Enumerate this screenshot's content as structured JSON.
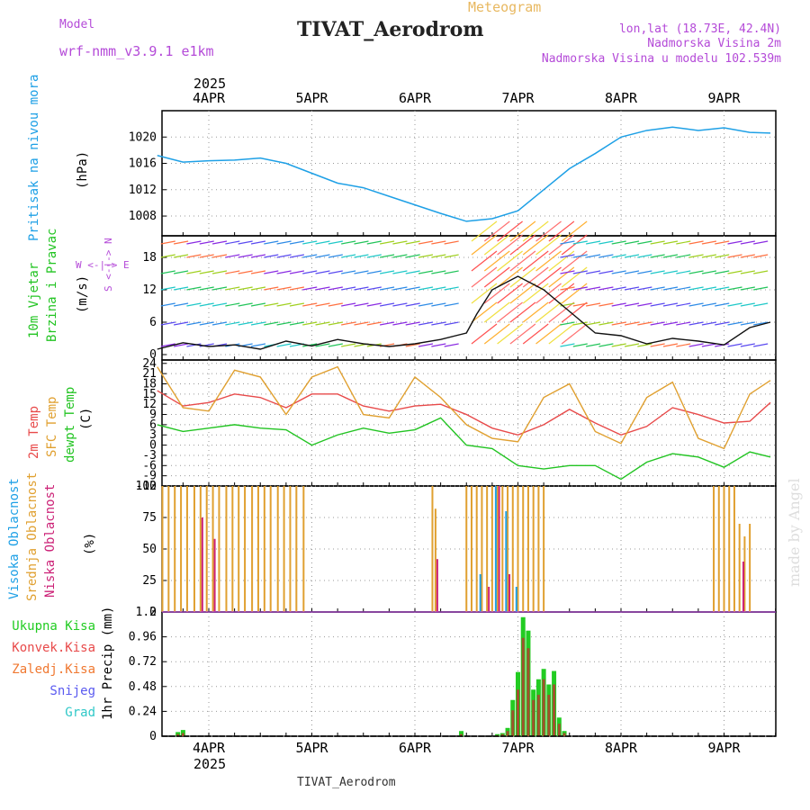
{
  "header": {
    "model_label": "Model",
    "model_name": "wrf-nmm_v3.9.1 e1km",
    "program": "Meteogram",
    "station": "TIVAT_Aerodrom",
    "lonlat": "lon,lat (18.73E, 42.4N)",
    "elevation": "Nadmorska Visina 2m",
    "model_elevation": "Nadmorska Visina u modelu 102.539m",
    "credit": "made by Angel",
    "footer_station": "TIVAT_Aerodrom"
  },
  "colors": {
    "pressure": "#1ea0e6",
    "temp2m": "#e84a4a",
    "sfc": "#e0a030",
    "dewpt": "#22c422",
    "high_cloud": "#1ea0e6",
    "mid_cloud": "#e0a030",
    "low_cloud": "#cc2277",
    "total_rain": "#22cc22",
    "conv_rain": "#e84a4a",
    "freezing": "#f07830",
    "snow": "#5a5af0",
    "grad": "#30c8c8",
    "model_purple": "#b44ad8"
  },
  "chart_data": [
    {
      "type": "line",
      "title": "",
      "ylabel": [
        "Pritisak na nivou mora",
        "(hPa)"
      ],
      "x_ticks_top": [
        "4APR",
        "5APR",
        "6APR",
        "7APR",
        "8APR",
        "9APR"
      ],
      "year_top": "2025",
      "ylim": [
        1005,
        1024
      ],
      "yticks": [
        "1008",
        "1012",
        "1016",
        "1020"
      ],
      "x": [
        0,
        0.25,
        0.5,
        0.75,
        1.0,
        1.25,
        1.5,
        1.75,
        2.0,
        2.25,
        2.5,
        2.75,
        3.0,
        3.25,
        3.5,
        3.75,
        4.0,
        4.25,
        4.5,
        4.75,
        5.0,
        5.25,
        5.5,
        5.75,
        5.95
      ],
      "series": [
        {
          "values": [
            1017.2,
            1016.2,
            1016.4,
            1016.5,
            1016.8,
            1016.0,
            1014.5,
            1013.0,
            1012.3,
            1011.0,
            1009.7,
            1008.4,
            1007.2,
            1007.6,
            1008.8,
            1012.0,
            1015.2,
            1017.5,
            1020.0,
            1021.0,
            1021.5,
            1021.0,
            1021.4,
            1020.7,
            1020.6
          ]
        }
      ]
    },
    {
      "type": "line",
      "title": "",
      "ylabel": [
        "10m Vjetar",
        "Brzina i Pravac",
        "(m/s)"
      ],
      "compass": "W <-|-> E",
      "compass_vertical": "S <-|-> N",
      "ylim": [
        -1,
        22
      ],
      "yticks": [
        "0",
        "6",
        "12",
        "18"
      ],
      "x": [
        0,
        0.25,
        0.5,
        0.75,
        1.0,
        1.25,
        1.5,
        1.75,
        2.0,
        2.25,
        2.5,
        2.75,
        3.0,
        3.1,
        3.25,
        3.4,
        3.5,
        3.75,
        4.0,
        4.25,
        4.5,
        4.75,
        5.0,
        5.25,
        5.5,
        5.75,
        5.95
      ],
      "series": [
        {
          "values": [
            1.0,
            2.2,
            1.5,
            1.8,
            1.0,
            2.5,
            1.6,
            2.8,
            2.0,
            1.5,
            2.0,
            2.8,
            4.0,
            7.5,
            12.0,
            13.5,
            14.5,
            12.0,
            8.0,
            4.0,
            3.5,
            2.0,
            3.0,
            2.5,
            1.8,
            5.0,
            6.0
          ]
        }
      ]
    },
    {
      "type": "line",
      "title": "",
      "ylabel": [
        "2m Temp",
        "SFC Temp",
        "dewpt Temp",
        "(C)"
      ],
      "ylim": [
        -12,
        25
      ],
      "yticks": [
        "-12",
        "-9",
        "-6",
        "-3",
        "0",
        "3",
        "6",
        "9",
        "12",
        "15",
        "18",
        "21",
        "24"
      ],
      "x": [
        0,
        0.25,
        0.5,
        0.75,
        1.0,
        1.25,
        1.5,
        1.75,
        2.0,
        2.25,
        2.5,
        2.75,
        3.0,
        3.25,
        3.5,
        3.75,
        4.0,
        4.25,
        4.5,
        4.75,
        5.0,
        5.25,
        5.5,
        5.75,
        5.95
      ],
      "series": [
        {
          "name": "2m Temp",
          "values": [
            16.0,
            11.5,
            12.5,
            15.0,
            14.0,
            11.0,
            15.0,
            15.0,
            11.5,
            10.0,
            11.5,
            12.0,
            9.0,
            5.0,
            3.0,
            6.0,
            10.5,
            6.5,
            3.0,
            5.5,
            11.0,
            9.0,
            6.5,
            7.0,
            12.5
          ]
        },
        {
          "name": "SFC Temp",
          "values": [
            23.0,
            11.0,
            10.0,
            22.0,
            20.0,
            9.0,
            20.0,
            23.0,
            9.0,
            8.0,
            20.0,
            14.0,
            6.0,
            2.0,
            1.0,
            14.0,
            18.0,
            4.0,
            0.5,
            14.0,
            18.5,
            2.0,
            -1.0,
            15.0,
            19.0
          ]
        },
        {
          "name": "dewpt Temp",
          "values": [
            6.0,
            4.0,
            5.0,
            6.0,
            5.0,
            4.5,
            0.0,
            3.0,
            5.0,
            3.5,
            4.5,
            8.0,
            0.0,
            -1.0,
            -6.0,
            -7.0,
            -6.0,
            -6.0,
            -10.0,
            -5.0,
            -2.5,
            -3.5,
            -6.5,
            -2.0,
            -3.5
          ]
        }
      ]
    },
    {
      "type": "bar",
      "title": "",
      "ylabel": [
        "Visoka Oblacnost",
        "Srednja Oblacnost",
        "Niska Oblacnost",
        "(%)"
      ],
      "ylim": [
        0,
        100
      ],
      "yticks": [
        "0",
        "25",
        "50",
        "75",
        "100"
      ],
      "series": [
        {
          "name": "Srednja Oblacnost",
          "x": [
            0.05,
            0.11,
            0.17,
            0.23,
            0.29,
            0.36,
            0.42,
            0.48,
            0.54,
            0.6,
            0.67,
            0.73,
            0.79,
            0.85,
            0.92,
            0.98,
            1.04,
            1.1,
            1.17,
            1.23,
            1.29,
            1.35,
            1.42,
            2.67,
            2.7,
            3.0,
            3.05,
            3.1,
            3.15,
            3.2,
            3.25,
            3.3,
            3.35,
            3.4,
            3.45,
            3.5,
            3.55,
            3.6,
            3.65,
            3.7,
            3.75,
            3.8,
            3.85,
            3.9,
            3.95,
            4.0,
            4.05,
            4.1,
            4.15,
            4.2,
            4.25,
            4.3,
            4.35,
            4.4,
            4.45,
            4.5,
            4.55,
            4.6,
            4.65,
            4.7,
            4.75,
            4.8,
            4.85,
            4.9,
            4.95,
            5.0,
            5.05,
            5.1,
            5.15,
            5.2,
            5.25,
            5.3,
            5.35,
            5.4,
            5.45,
            5.5,
            5.55,
            5.6,
            5.65,
            5.7,
            5.75,
            5.8,
            5.85,
            5.9
          ],
          "values": [
            100,
            100,
            100,
            100,
            100,
            100,
            100,
            100,
            100,
            100,
            100,
            100,
            100,
            100,
            100,
            100,
            100,
            100,
            100,
            100,
            100,
            100,
            100,
            100,
            82,
            100,
            100,
            100,
            100,
            100,
            100,
            100,
            100,
            100,
            100,
            100,
            100,
            100,
            100,
            100,
            100,
            0,
            0,
            0,
            0,
            0,
            0,
            0,
            0,
            0,
            0,
            0,
            0,
            0,
            0,
            0,
            0,
            0,
            0,
            0,
            0,
            0,
            0,
            0,
            0,
            0,
            0,
            0,
            0,
            0,
            0,
            0,
            0,
            100,
            100,
            100,
            100,
            100,
            70,
            60,
            70,
            0,
            0,
            0
          ]
        },
        {
          "name": "Niska Oblacnost",
          "x": [
            0.42,
            0.54,
            2.7,
            3.2,
            3.3,
            3.4,
            5.67
          ],
          "values": [
            75,
            58,
            42,
            20,
            100,
            30,
            40
          ]
        },
        {
          "name": "Visoka Oblacnost",
          "x": [
            3.1,
            3.25,
            3.35,
            3.45
          ],
          "values": [
            30,
            100,
            80,
            20
          ]
        }
      ]
    },
    {
      "type": "bar",
      "title": "",
      "ylabel": [
        "1hr Precip (mm)"
      ],
      "legend": [
        "Ukupna Kisa",
        "Konvek.Kisa",
        "Zaledj.Kisa",
        "Snijeg",
        "Grad"
      ],
      "x_ticks_bottom": [
        "4APR",
        "5APR",
        "6APR",
        "7APR",
        "8APR",
        "9APR"
      ],
      "year_bottom": "2025",
      "ylim": [
        0,
        1.2
      ],
      "yticks": [
        "0",
        "0.24",
        "0.48",
        "0.72",
        "0.96",
        "1.2"
      ],
      "x": [
        0.2,
        0.25,
        2.95,
        3.3,
        3.35,
        3.4,
        3.45,
        3.5,
        3.55,
        3.6,
        3.65,
        3.7,
        3.75,
        3.8,
        3.85,
        3.9,
        3.95,
        4.0
      ],
      "series": [
        {
          "name": "Ukupna Kisa",
          "values": [
            0.04,
            0.06,
            0.05,
            0.02,
            0.03,
            0.08,
            0.35,
            0.62,
            1.15,
            1.02,
            0.45,
            0.55,
            0.65,
            0.5,
            0.63,
            0.18,
            0.05,
            0.0
          ]
        },
        {
          "name": "Konvek.Kisa",
          "values": [
            0.02,
            0.03,
            0.02,
            0.01,
            0.02,
            0.05,
            0.25,
            0.45,
            0.95,
            0.85,
            0.35,
            0.4,
            0.55,
            0.4,
            0.5,
            0.12,
            0.03,
            0.0
          ]
        }
      ]
    }
  ]
}
